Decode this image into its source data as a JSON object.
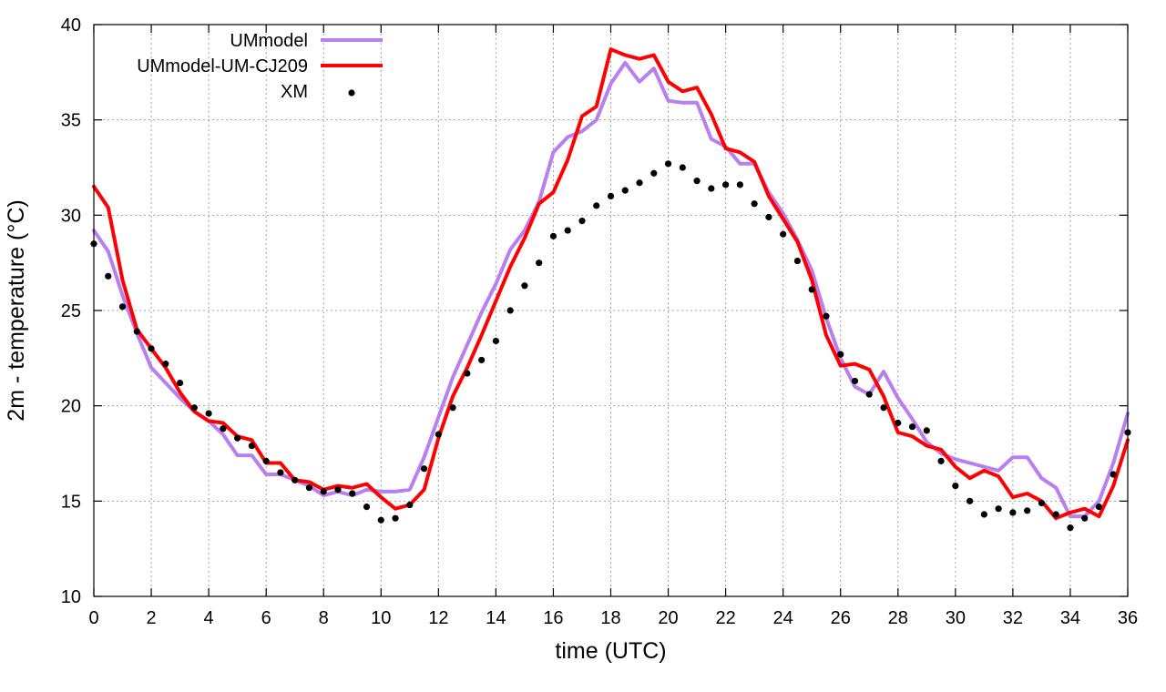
{
  "chart_data": {
    "type": "line",
    "xlabel": "time (UTC)",
    "ylabel": "2m - temperature (°C)",
    "xlim": [
      0,
      36
    ],
    "ylim": [
      10,
      40
    ],
    "xticks": [
      0,
      2,
      4,
      6,
      8,
      10,
      12,
      14,
      16,
      18,
      20,
      22,
      24,
      26,
      28,
      30,
      32,
      34,
      36
    ],
    "yticks": [
      10,
      15,
      20,
      25,
      30,
      35,
      40
    ],
    "grid": true,
    "legend_position": "top-center",
    "x": [
      0,
      0.5,
      1,
      1.5,
      2,
      2.5,
      3,
      3.5,
      4,
      4.5,
      5,
      5.5,
      6,
      6.5,
      7,
      7.5,
      8,
      8.5,
      9,
      9.5,
      10,
      10.5,
      11,
      11.5,
      12,
      12.5,
      13,
      13.5,
      14,
      14.5,
      15,
      15.5,
      16,
      16.5,
      17,
      17.5,
      18,
      18.5,
      19,
      19.5,
      20,
      20.5,
      21,
      21.5,
      22,
      22.5,
      23,
      23.5,
      24,
      24.5,
      25,
      25.5,
      26,
      26.5,
      27,
      27.5,
      28,
      28.5,
      29,
      29.5,
      30,
      30.5,
      31,
      31.5,
      32,
      32.5,
      33,
      33.5,
      34,
      34.5,
      35,
      35.5,
      36
    ],
    "series": [
      {
        "name": "UMmodel",
        "style": "line",
        "color": "#b77ff0",
        "values": [
          29.2,
          28.1,
          25.8,
          23.8,
          22.0,
          21.2,
          20.4,
          19.7,
          19.2,
          18.5,
          17.4,
          17.4,
          16.4,
          16.4,
          16.1,
          15.8,
          15.3,
          15.5,
          15.3,
          15.6,
          15.5,
          15.5,
          15.6,
          17.3,
          19.4,
          21.5,
          23.2,
          24.9,
          26.4,
          28.2,
          29.2,
          30.7,
          33.3,
          34.1,
          34.4,
          35.0,
          36.9,
          38.0,
          37.0,
          37.7,
          36.0,
          35.9,
          35.9,
          34.0,
          33.6,
          32.7,
          32.7,
          31.2,
          30.1,
          28.7,
          27.1,
          24.6,
          22.5,
          21.0,
          20.6,
          21.8,
          20.4,
          19.3,
          18.1,
          17.5,
          17.2,
          17.0,
          16.8,
          16.6,
          17.3,
          17.3,
          16.2,
          15.7,
          14.2,
          14.2,
          15.0,
          17.0,
          19.6
        ]
      },
      {
        "name": "UMmodel-UM-CJ209",
        "style": "line",
        "color": "#ff0000",
        "values": [
          31.5,
          30.4,
          26.6,
          24.0,
          23.0,
          22.0,
          20.7,
          19.7,
          19.2,
          19.1,
          18.4,
          18.2,
          17.0,
          17.0,
          16.1,
          16.0,
          15.6,
          15.8,
          15.7,
          15.9,
          15.2,
          14.6,
          14.8,
          15.6,
          18.3,
          20.5,
          22.0,
          23.7,
          25.5,
          27.3,
          28.8,
          30.6,
          31.2,
          32.9,
          35.2,
          35.7,
          38.7,
          38.4,
          38.2,
          38.4,
          37.0,
          36.5,
          36.7,
          35.3,
          33.5,
          33.3,
          32.8,
          31.0,
          29.8,
          28.6,
          26.6,
          23.7,
          22.1,
          22.2,
          21.9,
          20.5,
          18.6,
          18.4,
          17.9,
          17.7,
          16.8,
          16.2,
          16.6,
          16.3,
          15.2,
          15.4,
          15.0,
          14.1,
          14.4,
          14.6,
          14.2,
          15.8,
          18.2
        ]
      },
      {
        "name": "XM",
        "style": "points",
        "color": "#000000",
        "values": [
          28.5,
          26.8,
          25.2,
          23.9,
          23.0,
          22.2,
          21.2,
          19.9,
          19.6,
          18.8,
          18.3,
          17.9,
          17.1,
          16.5,
          16.1,
          15.7,
          15.5,
          15.6,
          15.4,
          14.7,
          14.0,
          14.1,
          14.8,
          16.7,
          18.5,
          19.9,
          21.7,
          22.4,
          23.4,
          25.0,
          26.3,
          27.5,
          28.9,
          29.2,
          29.7,
          30.5,
          31.0,
          31.3,
          31.7,
          32.2,
          32.7,
          32.5,
          31.8,
          31.4,
          31.6,
          31.6,
          30.6,
          29.9,
          29.0,
          27.6,
          26.1,
          24.7,
          22.7,
          21.3,
          20.6,
          19.9,
          19.1,
          18.9,
          18.7,
          17.1,
          15.8,
          15.0,
          14.3,
          14.6,
          14.4,
          14.5,
          14.9,
          14.3,
          13.6,
          14.1,
          14.7,
          16.4,
          18.6
        ]
      }
    ]
  }
}
